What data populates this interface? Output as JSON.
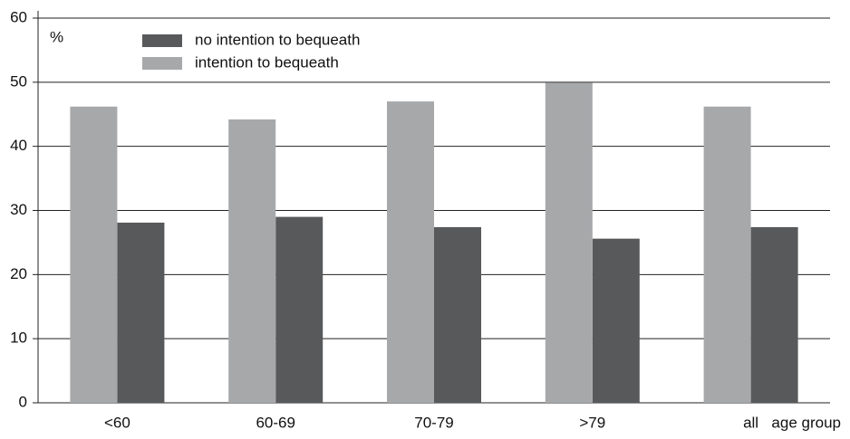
{
  "chart_data": {
    "type": "bar",
    "y_label": "%",
    "x_label": "age group",
    "categories": [
      "<60",
      "60-69",
      "70-79",
      ">79",
      "all"
    ],
    "series": [
      {
        "name": "no intention to bequeath",
        "color": "#58595b",
        "values": [
          28.1,
          29.0,
          27.4,
          25.6,
          27.4
        ]
      },
      {
        "name": "intention to bequeath",
        "color": "#a7a8aa",
        "values": [
          46.2,
          44.2,
          47.0,
          49.9,
          46.2
        ]
      }
    ],
    "ylim": [
      0,
      60
    ],
    "yticks": [
      0,
      10,
      20,
      30,
      40,
      50,
      60
    ],
    "grid": true
  }
}
